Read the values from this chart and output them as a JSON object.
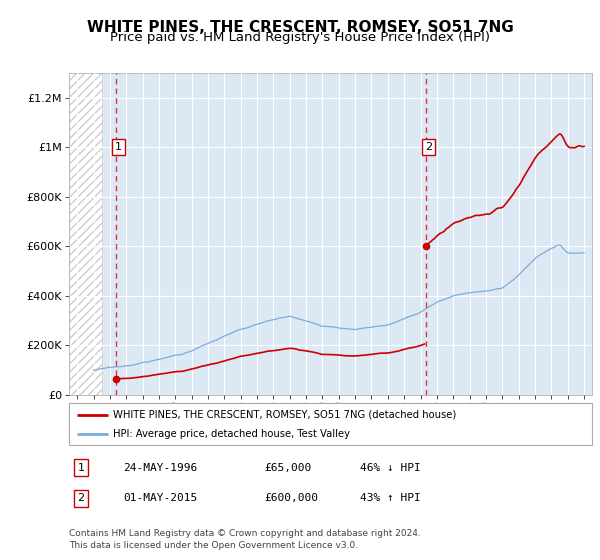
{
  "title": "WHITE PINES, THE CRESCENT, ROMSEY, SO51 7NG",
  "subtitle": "Price paid vs. HM Land Registry's House Price Index (HPI)",
  "ylabel_ticks": [
    0,
    200000,
    400000,
    600000,
    800000,
    1000000,
    1200000
  ],
  "ylabel_labels": [
    "£0",
    "£200K",
    "£400K",
    "£600K",
    "£800K",
    "£1M",
    "£1.2M"
  ],
  "ylim": [
    0,
    1300000
  ],
  "xmin": 1993.5,
  "xmax": 2025.5,
  "sale1_year": 1996.39,
  "sale1_price": 65000,
  "sale1_label": "1",
  "sale1_date": "24-MAY-1996",
  "sale1_amount": "£65,000",
  "sale1_hpi": "46% ↓ HPI",
  "sale2_year": 2015.33,
  "sale2_price": 600000,
  "sale2_label": "2",
  "sale2_date": "01-MAY-2015",
  "sale2_amount": "£600,000",
  "sale2_hpi": "43% ↑ HPI",
  "hatch_xmin": 1993.5,
  "hatch_xmax": 1995.5,
  "bg_color": "#dce9f5",
  "hatch_facecolor": "#ffffff",
  "hatch_edgecolor": "#cccccc",
  "red_line_color": "#cc0000",
  "blue_line_color": "#7aadda",
  "marker_color": "#cc0000",
  "vline_color": "#dd3333",
  "grid_color": "#ffffff",
  "legend_label_red": "WHITE PINES, THE CRESCENT, ROMSEY, SO51 7NG (detached house)",
  "legend_label_blue": "HPI: Average price, detached house, Test Valley",
  "footer": "Contains HM Land Registry data © Crown copyright and database right 2024.\nThis data is licensed under the Open Government Licence v3.0.",
  "title_fontsize": 11,
  "subtitle_fontsize": 9.5
}
